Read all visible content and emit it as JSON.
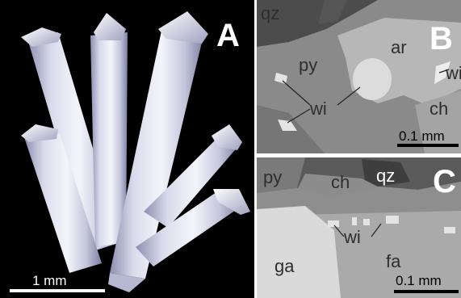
{
  "panel_a": {
    "letter": "A",
    "scale_label": "1 mm"
  },
  "panel_b": {
    "letter": "B",
    "labels": {
      "qz": "qz",
      "py": "py",
      "ar": "ar",
      "wi": "wi",
      "wi2": "wi",
      "ch": "ch"
    },
    "scale_label": "0.1 mm"
  },
  "panel_c": {
    "letter": "C",
    "labels": {
      "py": "py",
      "ch": "ch",
      "qz": "qz",
      "wi": "wi",
      "ga": "ga",
      "fa": "fa"
    },
    "scale_label": "0.1 mm"
  },
  "colors": {
    "background_a": "#000000",
    "crystal_light": "#eceef8",
    "crystal_shade": "#a7a9c6",
    "py": "#8a8a8a",
    "ar": "#b7b7b7",
    "qz": "#4c4c4c",
    "ch": "#a3a3a3",
    "wi": "#e2e2e2",
    "ga": "#dcdcdc",
    "fa": "#a9a9a9"
  }
}
